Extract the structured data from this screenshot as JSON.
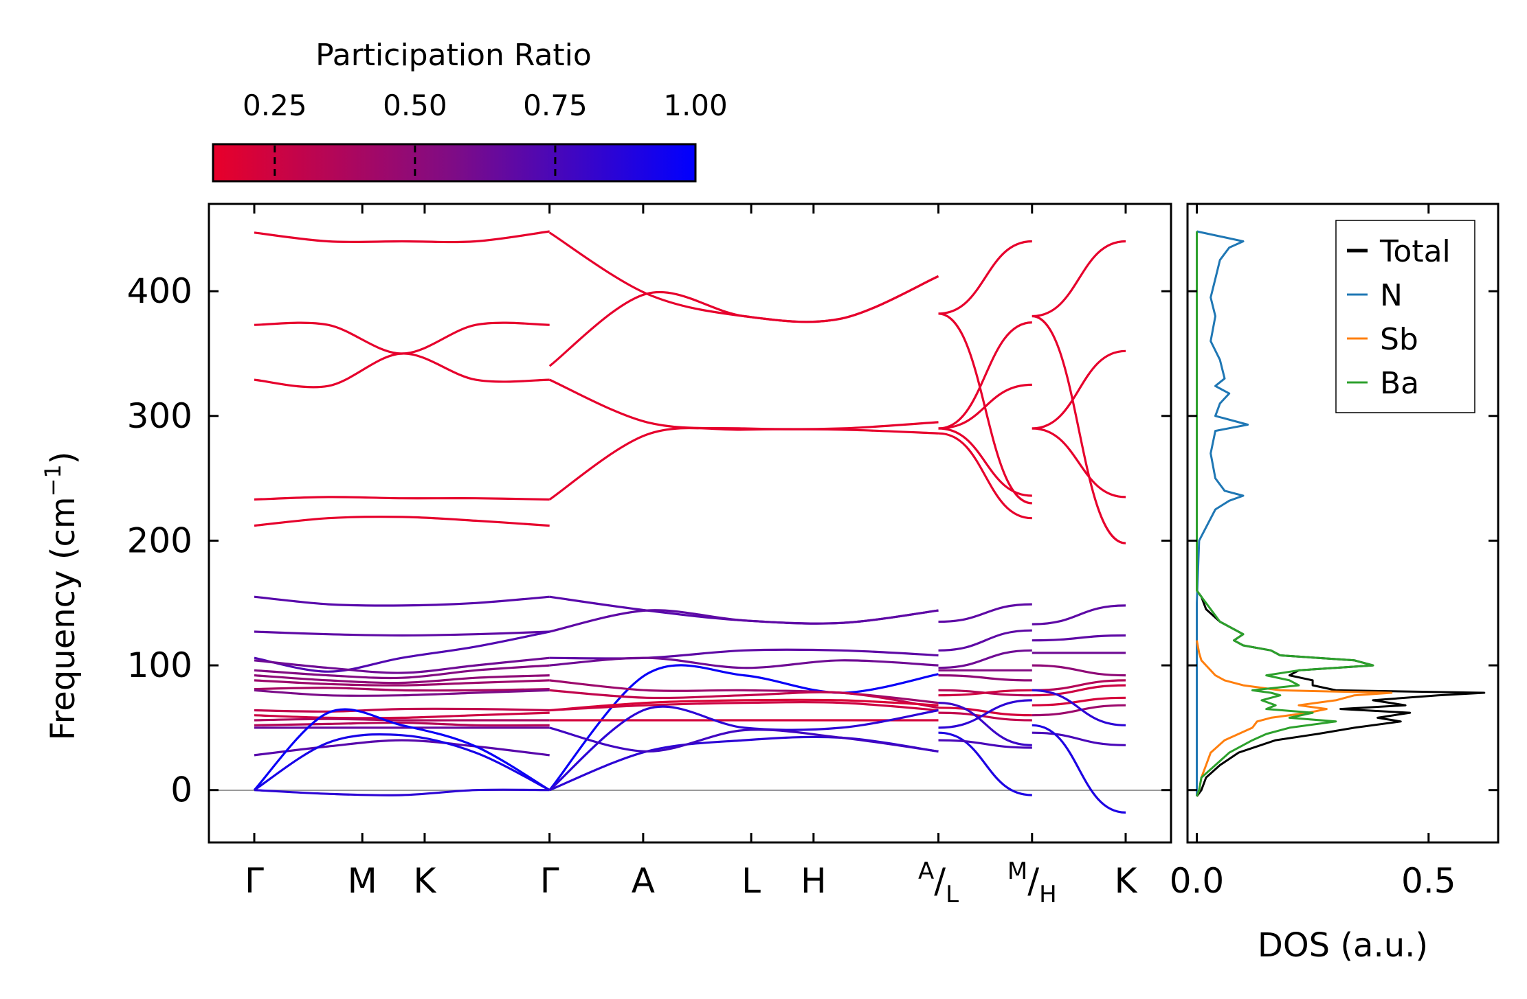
{
  "chart_data": [
    {
      "type": "line",
      "subtype": "phonon-band-structure",
      "ylabel": "Frequency (cm",
      "ylabel_sup": "−1",
      "ylabel_close": ")",
      "ylim": [
        -42,
        470
      ],
      "yticks": [
        0,
        100,
        200,
        300,
        400
      ],
      "ytick_labels": [
        "0",
        "100",
        "200",
        "300",
        "400"
      ],
      "zero_line": true,
      "kpoints": [
        {
          "label": "Γ",
          "sup": "",
          "sub": "",
          "pos": 0.0
        },
        {
          "label": "M",
          "sup": "",
          "sub": "",
          "pos": 0.577
        },
        {
          "label": "K",
          "sup": "",
          "sub": "",
          "pos": 0.91
        },
        {
          "label": "Γ",
          "sup": "",
          "sub": "",
          "pos": 1.577
        },
        {
          "label": "",
          "sup": "",
          "sub": "",
          "pos": 2.077,
          "display": "A"
        },
        {
          "label": "L",
          "sup": "",
          "sub": "",
          "pos": 2.654
        },
        {
          "label": "H",
          "sup": "",
          "sub": "",
          "pos": 2.987
        },
        {
          "label": "/",
          "sup": "A",
          "sub": "L",
          "pos": 3.654
        },
        {
          "label": "/",
          "sup": "M",
          "sub": "H",
          "pos": 4.154
        },
        {
          "label": "K",
          "sup": "",
          "sub": "",
          "pos": 4.654
        }
      ],
      "segments": [
        [
          0,
          3
        ],
        [
          3,
          7
        ],
        [
          7,
          8
        ],
        [
          8,
          9
        ]
      ],
      "bands": [
        {
          "seg": 0,
          "pr": 0.15,
          "values": [
            447,
            440,
            440,
            440,
            448
          ]
        },
        {
          "seg": 0,
          "pr": 0.15,
          "values": [
            373,
            373,
            350,
            373,
            373
          ]
        },
        {
          "seg": 0,
          "pr": 0.15,
          "values": [
            329,
            324,
            350,
            329,
            329
          ]
        },
        {
          "seg": 0,
          "pr": 0.15,
          "values": [
            233,
            235,
            234,
            234,
            233
          ]
        },
        {
          "seg": 0,
          "pr": 0.15,
          "values": [
            212,
            218,
            219,
            216,
            212
          ]
        },
        {
          "seg": 0,
          "pr": 0.7,
          "values": [
            155,
            149,
            148,
            150,
            155
          ]
        },
        {
          "seg": 0,
          "pr": 0.68,
          "values": [
            127,
            125,
            124,
            125,
            127
          ]
        },
        {
          "seg": 0,
          "pr": 0.72,
          "values": [
            106,
            95,
            106,
            115,
            127
          ]
        },
        {
          "seg": 0,
          "pr": 0.62,
          "values": [
            104,
            98,
            94,
            100,
            106
          ]
        },
        {
          "seg": 0,
          "pr": 0.55,
          "values": [
            96,
            92,
            90,
            96,
            100
          ]
        },
        {
          "seg": 0,
          "pr": 0.5,
          "values": [
            92,
            88,
            86,
            90,
            92
          ]
        },
        {
          "seg": 0,
          "pr": 0.45,
          "values": [
            88,
            85,
            84,
            86,
            88
          ]
        },
        {
          "seg": 0,
          "pr": 0.4,
          "values": [
            81,
            82,
            80,
            80,
            81
          ]
        },
        {
          "seg": 0,
          "pr": 0.58,
          "values": [
            80,
            76,
            76,
            78,
            80
          ]
        },
        {
          "seg": 0,
          "pr": 0.3,
          "values": [
            64,
            63,
            65,
            65,
            64
          ]
        },
        {
          "seg": 0,
          "pr": 0.25,
          "values": [
            60,
            58,
            58,
            60,
            62
          ]
        },
        {
          "seg": 0,
          "pr": 0.38,
          "values": [
            56,
            57,
            56,
            56,
            56
          ]
        },
        {
          "seg": 0,
          "pr": 0.35,
          "values": [
            52,
            53,
            54,
            52,
            52
          ]
        },
        {
          "seg": 0,
          "pr": 0.65,
          "values": [
            50,
            50,
            50,
            50,
            50
          ]
        },
        {
          "seg": 0,
          "pr": 0.7,
          "values": [
            28,
            35,
            40,
            35,
            28
          ]
        },
        {
          "seg": 0,
          "pr": 0.97,
          "values": [
            0,
            62,
            52,
            35,
            0
          ]
        },
        {
          "seg": 0,
          "pr": 0.92,
          "values": [
            0,
            38,
            44,
            30,
            0
          ]
        },
        {
          "seg": 0,
          "pr": 0.85,
          "values": [
            0,
            -3,
            -4,
            0,
            0
          ]
        },
        {
          "seg": 1,
          "pr": 0.15,
          "values": [
            447,
            398,
            380,
            378,
            412
          ]
        },
        {
          "seg": 1,
          "pr": 0.15,
          "values": [
            340,
            398,
            380,
            378,
            412
          ]
        },
        {
          "seg": 1,
          "pr": 0.15,
          "values": [
            329,
            295,
            290,
            290,
            295
          ]
        },
        {
          "seg": 1,
          "pr": 0.15,
          "values": [
            233,
            285,
            289,
            289,
            286
          ]
        },
        {
          "seg": 1,
          "pr": 0.7,
          "values": [
            155,
            144,
            136,
            134,
            144
          ]
        },
        {
          "seg": 1,
          "pr": 0.68,
          "values": [
            127,
            144,
            136,
            134,
            144
          ]
        },
        {
          "seg": 1,
          "pr": 0.68,
          "values": [
            106,
            106,
            112,
            112,
            108
          ]
        },
        {
          "seg": 1,
          "pr": 0.62,
          "values": [
            100,
            106,
            98,
            104,
            100
          ]
        },
        {
          "seg": 1,
          "pr": 0.97,
          "values": [
            0,
            93,
            92,
            78,
            93
          ]
        },
        {
          "seg": 1,
          "pr": 0.45,
          "values": [
            88,
            80,
            80,
            78,
            70
          ]
        },
        {
          "seg": 1,
          "pr": 0.3,
          "values": [
            80,
            74,
            76,
            78,
            66
          ]
        },
        {
          "seg": 1,
          "pr": 0.2,
          "values": [
            64,
            70,
            72,
            72,
            68
          ]
        },
        {
          "seg": 1,
          "pr": 0.25,
          "values": [
            64,
            68,
            70,
            70,
            64
          ]
        },
        {
          "seg": 1,
          "pr": 0.22,
          "values": [
            56,
            56,
            56,
            56,
            56
          ]
        },
        {
          "seg": 1,
          "pr": 0.85,
          "values": [
            0,
            65,
            50,
            50,
            64
          ]
        },
        {
          "seg": 1,
          "pr": 0.85,
          "values": [
            0,
            31,
            40,
            42,
            31
          ]
        },
        {
          "seg": 1,
          "pr": 0.78,
          "values": [
            50,
            31,
            48,
            42,
            31
          ]
        },
        {
          "seg": 2,
          "pr": 0.15,
          "values": [
            382,
            440
          ]
        },
        {
          "seg": 2,
          "pr": 0.15,
          "values": [
            382,
            230
          ]
        },
        {
          "seg": 2,
          "pr": 0.15,
          "values": [
            290,
            375
          ]
        },
        {
          "seg": 2,
          "pr": 0.15,
          "values": [
            290,
            325
          ]
        },
        {
          "seg": 2,
          "pr": 0.15,
          "values": [
            290,
            236
          ]
        },
        {
          "seg": 2,
          "pr": 0.15,
          "values": [
            286,
            218
          ]
        },
        {
          "seg": 2,
          "pr": 0.68,
          "values": [
            135,
            149
          ]
        },
        {
          "seg": 2,
          "pr": 0.68,
          "values": [
            112,
            128
          ]
        },
        {
          "seg": 2,
          "pr": 0.62,
          "values": [
            98,
            112
          ]
        },
        {
          "seg": 2,
          "pr": 0.55,
          "values": [
            96,
            96
          ]
        },
        {
          "seg": 2,
          "pr": 0.5,
          "values": [
            92,
            88
          ]
        },
        {
          "seg": 2,
          "pr": 0.35,
          "values": [
            80,
            76
          ]
        },
        {
          "seg": 2,
          "pr": 0.25,
          "values": [
            76,
            80
          ]
        },
        {
          "seg": 2,
          "pr": 0.22,
          "values": [
            66,
            60
          ]
        },
        {
          "seg": 2,
          "pr": 0.3,
          "values": [
            62,
            56
          ]
        },
        {
          "seg": 2,
          "pr": 0.8,
          "values": [
            70,
            36
          ]
        },
        {
          "seg": 2,
          "pr": 0.85,
          "values": [
            50,
            72
          ]
        },
        {
          "seg": 2,
          "pr": 0.9,
          "values": [
            46,
            -4
          ]
        },
        {
          "seg": 2,
          "pr": 0.75,
          "values": [
            40,
            34
          ]
        },
        {
          "seg": 3,
          "pr": 0.15,
          "values": [
            380,
            440
          ]
        },
        {
          "seg": 3,
          "pr": 0.15,
          "values": [
            380,
            198
          ]
        },
        {
          "seg": 3,
          "pr": 0.15,
          "values": [
            290,
            352
          ]
        },
        {
          "seg": 3,
          "pr": 0.15,
          "values": [
            290,
            235
          ]
        },
        {
          "seg": 3,
          "pr": 0.68,
          "values": [
            133,
            148
          ]
        },
        {
          "seg": 3,
          "pr": 0.68,
          "values": [
            120,
            124
          ]
        },
        {
          "seg": 3,
          "pr": 0.62,
          "values": [
            110,
            110
          ]
        },
        {
          "seg": 3,
          "pr": 0.5,
          "values": [
            100,
            92
          ]
        },
        {
          "seg": 3,
          "pr": 0.35,
          "values": [
            80,
            88
          ]
        },
        {
          "seg": 3,
          "pr": 0.25,
          "values": [
            76,
            84
          ]
        },
        {
          "seg": 3,
          "pr": 0.22,
          "values": [
            68,
            74
          ]
        },
        {
          "seg": 3,
          "pr": 0.45,
          "values": [
            60,
            68
          ]
        },
        {
          "seg": 3,
          "pr": 0.85,
          "values": [
            80,
            52
          ]
        },
        {
          "seg": 3,
          "pr": 0.75,
          "values": [
            46,
            36
          ]
        },
        {
          "seg": 3,
          "pr": 0.9,
          "values": [
            52,
            -18
          ]
        }
      ]
    },
    {
      "type": "line",
      "subtype": "density-of-states",
      "xlabel": "DOS (a.u.)",
      "xlim": [
        -0.02,
        0.65
      ],
      "xticks": [
        0.0,
        0.5
      ],
      "xtick_labels": [
        "0.0",
        "0.5"
      ],
      "ylim": [
        -42,
        470
      ],
      "legend_location": "top-right",
      "series": [
        {
          "name": "Total",
          "color": "#000000",
          "frequency": [
            -5,
            0,
            10,
            20,
            30,
            40,
            45,
            50,
            55,
            58,
            62,
            65,
            68,
            72,
            76,
            78,
            80,
            84,
            88,
            92,
            96,
            100,
            104,
            108,
            112,
            116,
            120,
            125,
            135,
            145,
            155,
            160
          ],
          "values": [
            0,
            0.01,
            0.02,
            0.05,
            0.09,
            0.17,
            0.26,
            0.34,
            0.44,
            0.39,
            0.46,
            0.31,
            0.45,
            0.38,
            0.52,
            0.62,
            0.3,
            0.25,
            0.25,
            0.2,
            0.22,
            0.38,
            0.34,
            0.18,
            0.16,
            0.1,
            0.08,
            0.1,
            0.05,
            0.02,
            0.01,
            0.0
          ]
        },
        {
          "name": "N",
          "color": "#1f77b4",
          "frequency": [
            -5,
            150,
            200,
            225,
            232,
            236,
            240,
            250,
            270,
            288,
            293,
            300,
            310,
            318,
            324,
            330,
            345,
            360,
            380,
            395,
            410,
            425,
            435,
            440,
            448
          ],
          "values": [
            0,
            0,
            0.005,
            0.04,
            0.07,
            0.1,
            0.06,
            0.04,
            0.03,
            0.04,
            0.11,
            0.04,
            0.05,
            0.07,
            0.04,
            0.06,
            0.05,
            0.03,
            0.04,
            0.03,
            0.04,
            0.05,
            0.07,
            0.1,
            0.0
          ]
        },
        {
          "name": "Sb",
          "color": "#ff7f0e",
          "frequency": [
            -5,
            0,
            10,
            20,
            30,
            40,
            45,
            50,
            55,
            58,
            62,
            65,
            68,
            72,
            76,
            78,
            80,
            84,
            88,
            92,
            96,
            100,
            104,
            110,
            120
          ],
          "values": [
            0,
            0.005,
            0.01,
            0.02,
            0.03,
            0.06,
            0.09,
            0.12,
            0.13,
            0.16,
            0.24,
            0.28,
            0.22,
            0.3,
            0.34,
            0.42,
            0.18,
            0.1,
            0.06,
            0.04,
            0.03,
            0.02,
            0.01,
            0.005,
            0.0
          ]
        },
        {
          "name": "Ba",
          "color": "#2ca02c",
          "frequency": [
            -5,
            0,
            10,
            20,
            30,
            40,
            45,
            50,
            55,
            58,
            62,
            65,
            68,
            72,
            76,
            78,
            80,
            84,
            88,
            92,
            96,
            100,
            104,
            108,
            112,
            116,
            120,
            125,
            135,
            145,
            150,
            155,
            160,
            200,
            300,
            448
          ],
          "values": [
            0,
            0.005,
            0.01,
            0.04,
            0.07,
            0.12,
            0.15,
            0.2,
            0.3,
            0.2,
            0.25,
            0.15,
            0.17,
            0.14,
            0.18,
            0.16,
            0.12,
            0.22,
            0.2,
            0.15,
            0.22,
            0.38,
            0.34,
            0.18,
            0.16,
            0.1,
            0.08,
            0.1,
            0.05,
            0.03,
            0.02,
            0.01,
            0.0,
            0.0,
            0.0,
            0.0
          ]
        }
      ]
    }
  ],
  "colorbar": {
    "title": "Participation Ratio",
    "ticks": [
      0.25,
      0.5,
      0.75,
      1.0
    ],
    "tick_labels": [
      "0.25",
      "0.50",
      "0.75",
      "1.00"
    ],
    "range": [
      0.14,
      1.0
    ],
    "color_low": "#e8002a",
    "color_mid": "#7e0c86",
    "color_high": "#0000ff"
  },
  "legend": {
    "entries": [
      "Total",
      "N",
      "Sb",
      "Ba"
    ]
  }
}
